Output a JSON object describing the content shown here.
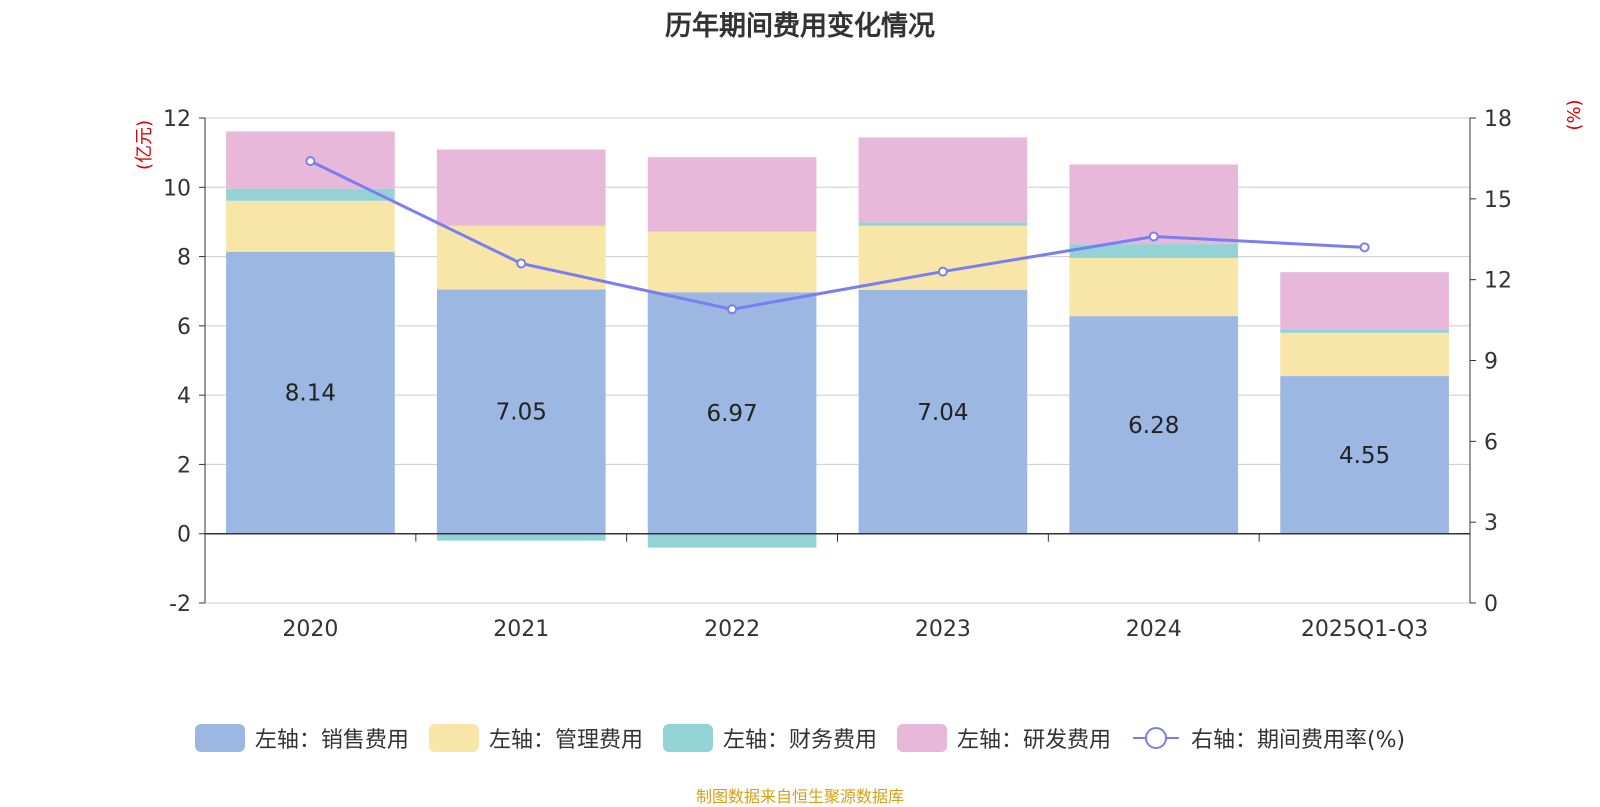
{
  "chart_data": {
    "type": "bar",
    "title": "历年期间费用变化情况",
    "categories": [
      "2020",
      "2021",
      "2022",
      "2023",
      "2024",
      "2025Q1-Q3"
    ],
    "left_axis": {
      "unit_label": "(亿元)",
      "ylim": [
        -2,
        12
      ],
      "ticks": [
        -2,
        0,
        2,
        4,
        6,
        8,
        10,
        12
      ]
    },
    "right_axis": {
      "unit_label": "(%)",
      "ylim": [
        0,
        18
      ],
      "ticks": [
        0,
        3,
        6,
        9,
        12,
        15,
        18
      ]
    },
    "series": [
      {
        "name": "左轴：销售费用",
        "kind": "stacked-bar",
        "color": "#9bb7e2",
        "values": [
          8.14,
          7.05,
          6.97,
          7.04,
          6.28,
          4.55
        ],
        "show_labels": true
      },
      {
        "name": "左轴：管理费用",
        "kind": "stacked-bar",
        "color": "#f7e6a8",
        "values": [
          1.47,
          1.84,
          1.75,
          1.85,
          1.68,
          1.25
        ]
      },
      {
        "name": "左轴：财务费用",
        "kind": "stacked-bar",
        "color": "#93d3d5",
        "values": [
          0.35,
          -0.2,
          -0.4,
          0.1,
          0.4,
          0.1
        ]
      },
      {
        "name": "左轴：研发费用",
        "kind": "stacked-bar",
        "color": "#e8b8da",
        "values": [
          1.65,
          2.2,
          2.15,
          2.45,
          2.3,
          1.65
        ]
      },
      {
        "name": "右轴：期间费用率(%)",
        "kind": "line",
        "axis": "right",
        "color": "#7b7ef0",
        "values": [
          16.4,
          12.6,
          10.9,
          12.3,
          13.6,
          13.2
        ]
      }
    ],
    "grid": true,
    "legend_position": "bottom"
  },
  "source": "制图数据来自恒生聚源数据库"
}
